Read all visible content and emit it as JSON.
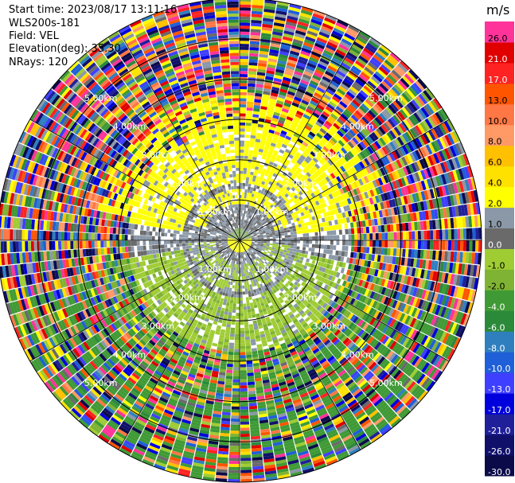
{
  "header": {
    "start_time": "Start time: 2023/08/17 13:11:16",
    "station": "WLS200s-181",
    "field": "Field: VEL",
    "elevation": "Elevation(deg): 35.30",
    "nrays": "NRays: 120"
  },
  "chart_data": {
    "type": "heatmap",
    "projection": "polar-ppi",
    "field": "VEL",
    "unit": "m/s",
    "rays": 120,
    "range_max_km": 6.0,
    "range_rings_km": [
      1.0,
      2.0,
      3.0,
      4.0,
      5.0,
      6.0
    ],
    "range_ring_labels": [
      "1.00km",
      "2.00km",
      "3.00km",
      "4.00km",
      "5.00km"
    ],
    "spoke_angles_deg": [
      0,
      30,
      60,
      90,
      120,
      150,
      180,
      210,
      240,
      270,
      300,
      330
    ],
    "colorbar": {
      "unit": "m/s",
      "boundaries": [
        -30.0,
        -26.0,
        -21.0,
        -17.0,
        -13.0,
        -10.0,
        -8.0,
        -6.0,
        -4.0,
        -2.0,
        -1.0,
        0.0,
        1.0,
        2.0,
        4.0,
        6.0,
        8.0,
        10.0,
        13.0,
        17.0,
        21.0,
        26.0,
        30.0
      ],
      "tick_labels": [
        "-30.0",
        "-26.0",
        "-21.0",
        "-17.0",
        "-13.0",
        "-10.0",
        "-8.0",
        "-6.0",
        "-4.0",
        "-2.0",
        "-1.0",
        "0.0",
        "1.0",
        "2.0",
        "4.0",
        "6.0",
        "8.0",
        "10.0",
        "13.0",
        "17.0",
        "21.0",
        "26.0"
      ],
      "colors": [
        "#0b0b4a",
        "#10106b",
        "#1f1f9a",
        "#0000dd",
        "#3f3fff",
        "#1f5fd8",
        "#2f7fbf",
        "#2b8a3a",
        "#3f9a35",
        "#7fb333",
        "#9fcc33",
        "#6a6a6a",
        "#8a98a8",
        "#ffff00",
        "#ffe100",
        "#ffc000",
        "#ff9966",
        "#ff7744",
        "#ff5500",
        "#ff2222",
        "#e00000",
        "#ff3399"
      ]
    },
    "field_description": {
      "near_range_km": 0.3,
      "gray_band_km": [
        0.4,
        1.7
      ],
      "yellow_arc_northern_km": [
        1.6,
        2.8
      ],
      "green_arc_southern_km": [
        1.0,
        3.2
      ],
      "noisy_beyond_km": 2.8
    }
  }
}
